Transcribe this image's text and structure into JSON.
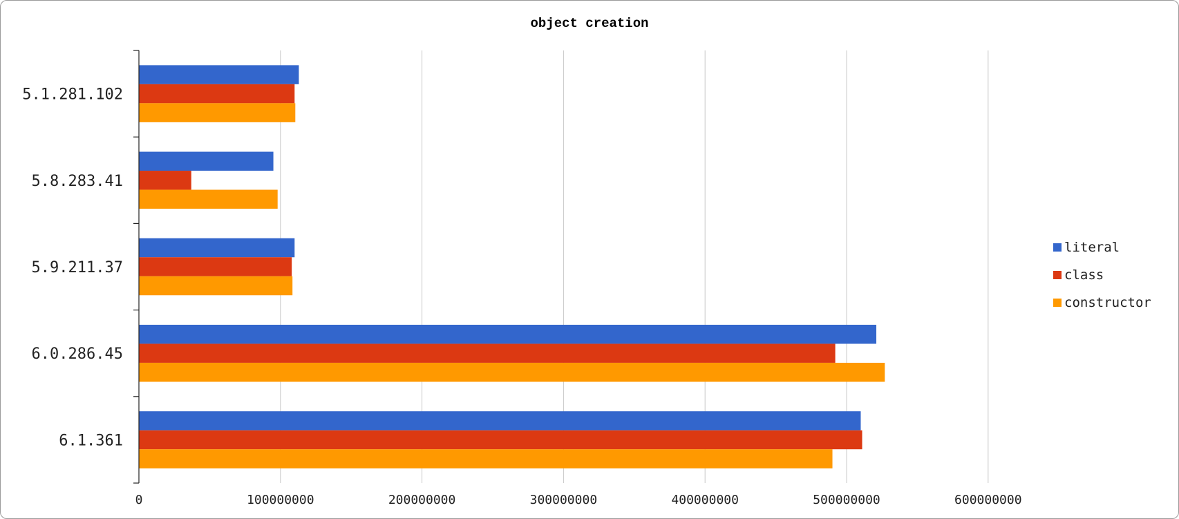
{
  "chart_data": {
    "type": "bar",
    "orientation": "horizontal",
    "title": "object creation",
    "xlabel": "",
    "ylabel": "",
    "categories": [
      "5.1.281.102",
      "5.8.283.41",
      "5.9.211.37",
      "6.0.286.45",
      "6.1.361"
    ],
    "series": [
      {
        "name": "literal",
        "color": "#3366cc",
        "values": [
          113000000,
          95000000,
          110000000,
          521000000,
          510000000
        ]
      },
      {
        "name": "class",
        "color": "#dc3912",
        "values": [
          110000000,
          37000000,
          108000000,
          492000000,
          511000000
        ]
      },
      {
        "name": "constructor",
        "color": "#ff9900",
        "values": [
          110500000,
          98000000,
          108500000,
          527000000,
          490000000
        ]
      }
    ],
    "xlim": [
      0,
      700000000
    ],
    "xticks": [
      0,
      100000000,
      200000000,
      300000000,
      400000000,
      500000000,
      600000000
    ],
    "xtick_labels": [
      "0",
      "100000000",
      "200000000",
      "300000000",
      "400000000",
      "500000000",
      "600000000"
    ],
    "grid": "vertical",
    "legend_position": "right"
  }
}
